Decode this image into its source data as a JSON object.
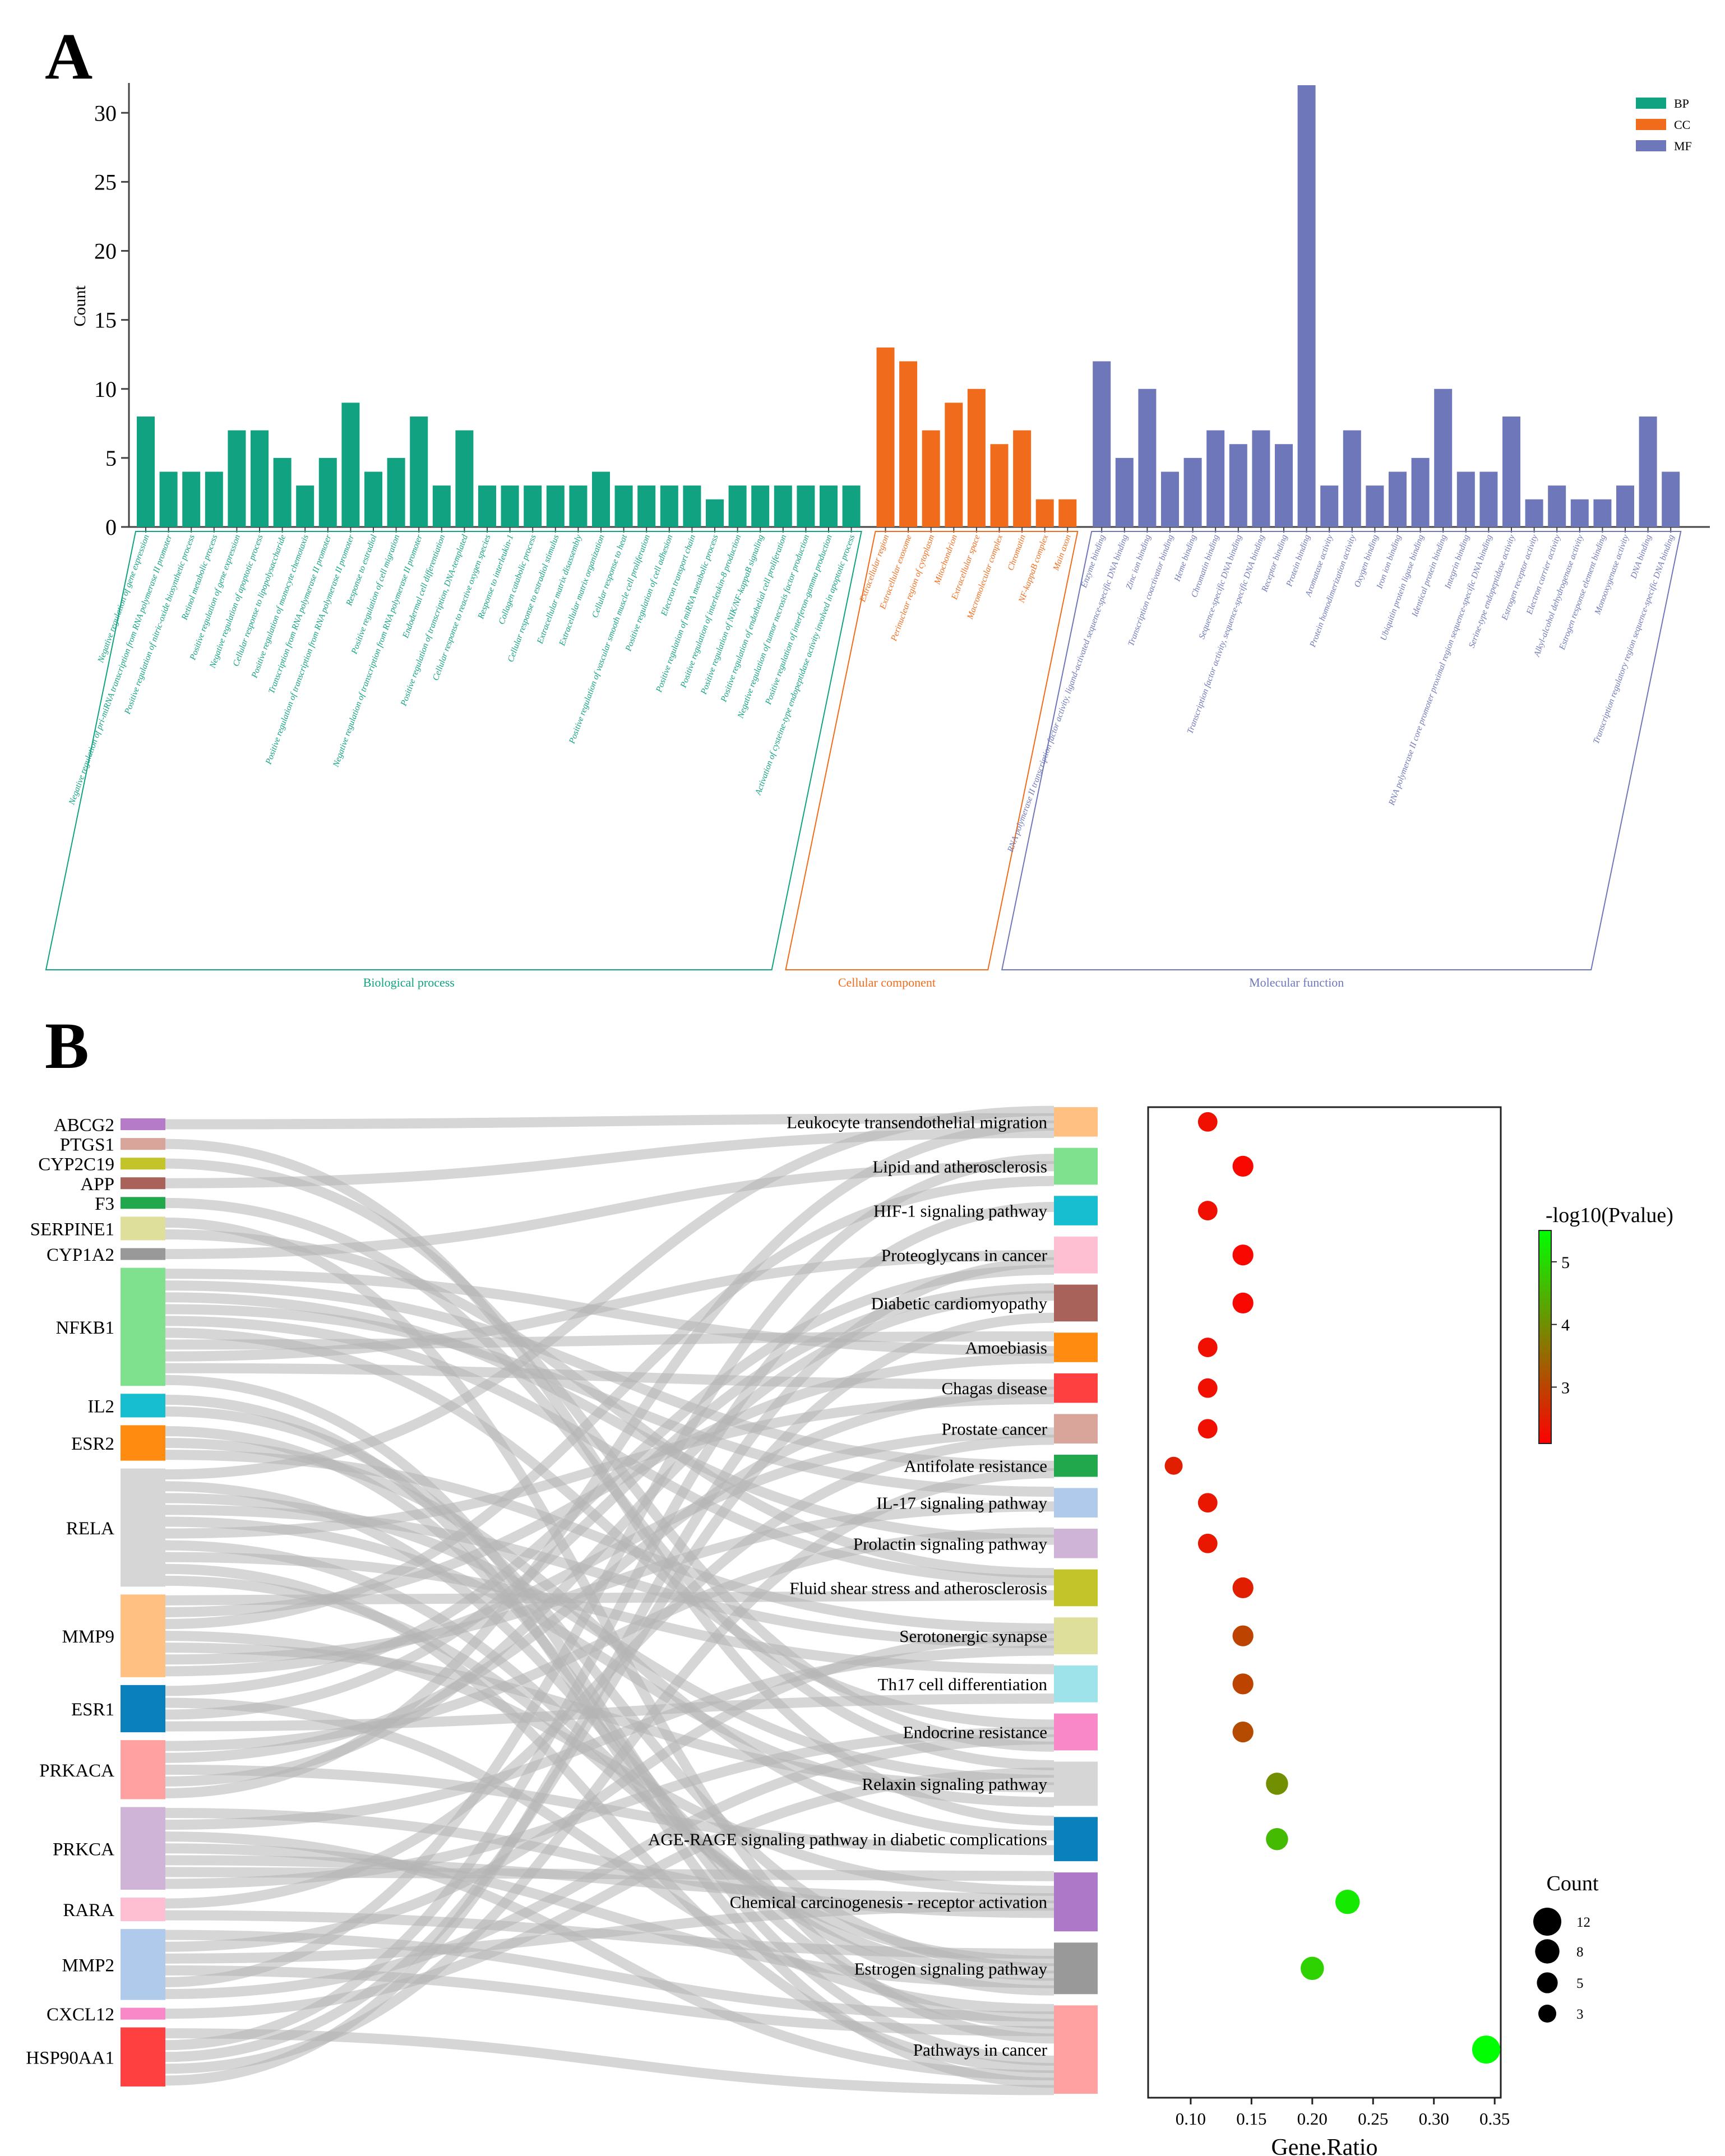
{
  "panels": {
    "a": "A",
    "b": "B"
  },
  "chart_data": [
    {
      "type": "bar",
      "ylabel": "Count",
      "ylim": [
        0,
        32
      ],
      "yticks": [
        0,
        5,
        10,
        15,
        20,
        25,
        30
      ],
      "legend": {
        "placement": "top-right",
        "items": [
          {
            "key": "BP",
            "label": "BP",
            "color": "#10a281"
          },
          {
            "key": "CC",
            "label": "CC",
            "color": "#f06c1c"
          },
          {
            "key": "MF",
            "label": "MF",
            "color": "#6e77b9"
          }
        ]
      },
      "groups": [
        {
          "key": "BP",
          "label": "Biological process",
          "color": "#10a281",
          "categories": [
            "Negative regulation of gene expression",
            "Negative regulation of pri-miRNA transcription from RNA polymerase II promoter",
            "Positive regulation of nitric-oxide biosynthetic process",
            "Retinol metabolic process",
            "Positive regulation of gene expression",
            "Negative regulation of apoptotic process",
            "Cellular response to lipopolysaccharide",
            "Positive regulation of monocyte chemotaxis",
            "Transcription from RNA polymerase II promoter",
            "Positive regulation of transcription from RNA polymerase II promoter",
            "Response to estradiol",
            "Positive regulation of cell migration",
            "Negative regulation of transcription from RNA polymerase II promoter",
            "Endodermal cell differentiation",
            "Positive regulation of transcription, DNA-templated",
            "Cellular response to reactive oxygen species",
            "Response to interleukin-1",
            "Collagen catabolic process",
            "Cellular response to estradiol stimulus",
            "Extracellular matrix disassembly",
            "Extracellular matrix organization",
            "Cellular response to heat",
            "Positive regulation of vascular smooth muscle cell proliferation",
            "Positive regulation of cell adhesion",
            "Electron transport chain",
            "Positive regulation of miRNA metabolic process",
            "Positive regulation of interleukin-8 production",
            "Positive regulation of NIK/NF-kappaB signaling",
            "Positive regulation of endothelial cell proliferation",
            "Negative regulation of tumor necrosis factor production",
            "Positive regulation of interferon-gamma production",
            "Activation of cysteine-type endopeptidase activity involved in apoptotic process"
          ],
          "values": [
            8,
            4,
            4,
            4,
            7,
            7,
            5,
            3,
            5,
            9,
            4,
            5,
            8,
            3,
            7,
            3,
            3,
            3,
            3,
            3,
            4,
            3,
            3,
            3,
            3,
            2,
            3,
            3,
            3,
            3,
            3,
            3
          ]
        },
        {
          "key": "CC",
          "label": "Cellular component",
          "color": "#f06c1c",
          "categories": [
            "Extracellular region",
            "Extracellular exosome",
            "Perinuclear region of cytoplasm",
            "Mitochondrion",
            "Extracellular space",
            "Macromolecular complex",
            "Chromatin",
            "NF-kappaB complex",
            "Main axon"
          ],
          "values": [
            13,
            12,
            7,
            9,
            10,
            6,
            7,
            2,
            2
          ]
        },
        {
          "key": "MF",
          "label": "Molecular function",
          "color": "#6e77b9",
          "categories": [
            "Enzyme binding",
            "RNA polymerase II transcription factor activity, ligand-activated sequence-specific DNA binding",
            "Zinc ion binding",
            "Transcription coactivator binding",
            "Heme binding",
            "Chromatin binding",
            "Sequence-specific DNA binding",
            "Transcription factor activity, sequence-specific DNA binding",
            "Receptor binding",
            "Protein binding",
            "Aromatase activity",
            "Protein homodimerization activity",
            "Oxygen binding",
            "Iron ion binding",
            "Ubiquitin protein ligase binding",
            "Identical protein binding",
            "Integrin binding",
            "RNA polymerase II core promoter proximal region sequence-specific DNA binding",
            "Serine-type endopeptidase activity",
            "Estrogen receptor activity",
            "Electron carrier activity",
            "Alkyl-alcohol dehydrogenase activity",
            "Estrogen response element binding",
            "Monooxygenase activity",
            "DNA binding",
            "Transcription regulatory region sequence-specific DNA binding"
          ],
          "values": [
            12,
            5,
            10,
            4,
            5,
            7,
            6,
            7,
            6,
            32,
            3,
            7,
            3,
            4,
            5,
            10,
            4,
            4,
            8,
            2,
            3,
            2,
            2,
            3,
            8,
            4
          ]
        }
      ]
    },
    {
      "type": "sankey",
      "genes": [
        {
          "name": "ABCG2",
          "color": "#b57ac8",
          "count": 1
        },
        {
          "name": "PTGS1",
          "color": "#d9a49a",
          "count": 1
        },
        {
          "name": "CYP2C19",
          "color": "#c2c42a",
          "count": 1
        },
        {
          "name": "APP",
          "color": "#a8625a",
          "count": 1
        },
        {
          "name": "F3",
          "color": "#21a84d",
          "count": 1
        },
        {
          "name": "SERPINE1",
          "color": "#dedf9a",
          "count": 2
        },
        {
          "name": "CYP1A2",
          "color": "#999999",
          "count": 1
        },
        {
          "name": "NFKB1",
          "color": "#7fe08d",
          "count": 10
        },
        {
          "name": "IL2",
          "color": "#17becf",
          "count": 2
        },
        {
          "name": "ESR2",
          "color": "#ff8c10",
          "count": 3
        },
        {
          "name": "RELA",
          "color": "#d6d6d6",
          "count": 10
        },
        {
          "name": "MMP9",
          "color": "#ffc081",
          "count": 7
        },
        {
          "name": "ESR1",
          "color": "#0a80bd",
          "count": 4
        },
        {
          "name": "PRKACA",
          "color": "#ffa1a0",
          "count": 5
        },
        {
          "name": "PRKCA",
          "color": "#cfb4d8",
          "count": 7
        },
        {
          "name": "RARA",
          "color": "#ffbfd3",
          "count": 2
        },
        {
          "name": "MMP2",
          "color": "#afcaea",
          "count": 6
        },
        {
          "name": "CXCL12",
          "color": "#f988c8",
          "count": 1
        },
        {
          "name": "HSP90AA1",
          "color": "#ff4040",
          "count": 5
        }
      ],
      "pathways": [
        {
          "name": "Leukocyte transendothelial migration",
          "color": "#ffc081"
        },
        {
          "name": "Lipid and atherosclerosis",
          "color": "#7fe08d"
        },
        {
          "name": "HIF-1 signaling pathway",
          "color": "#17becf"
        },
        {
          "name": "Proteoglycans in cancer",
          "color": "#ffbfd3"
        },
        {
          "name": "Diabetic cardiomyopathy",
          "color": "#a8625a"
        },
        {
          "name": "Amoebiasis",
          "color": "#ff8c10"
        },
        {
          "name": "Chagas disease",
          "color": "#ff4040"
        },
        {
          "name": "Prostate cancer",
          "color": "#d9a49a"
        },
        {
          "name": "Antifolate resistance",
          "color": "#21a84d"
        },
        {
          "name": "IL-17 signaling pathway",
          "color": "#afcaea"
        },
        {
          "name": "Prolactin signaling pathway",
          "color": "#cfb4d8"
        },
        {
          "name": "Fluid shear stress and atherosclerosis",
          "color": "#c2c42a"
        },
        {
          "name": "Serotonergic synapse",
          "color": "#dedf9a"
        },
        {
          "name": "Th17 cell differentiation",
          "color": "#9fe3ea"
        },
        {
          "name": "Endocrine resistance",
          "color": "#f988c8"
        },
        {
          "name": "Relaxin signaling pathway",
          "color": "#d6d6d6"
        },
        {
          "name": "AGE-RAGE signaling pathway in diabetic complications",
          "color": "#0a80bd"
        },
        {
          "name": "Chemical carcinogenesis - receptor activation",
          "color": "#ae78c8"
        },
        {
          "name": "Estrogen signaling pathway",
          "color": "#999999"
        },
        {
          "name": "Pathways in cancer",
          "color": "#ffa1a0"
        }
      ]
    },
    {
      "type": "scatter",
      "xlabel": "Gene.Ratio",
      "xlim": [
        0.065,
        0.355
      ],
      "xticks": [
        "0.10",
        "0.15",
        "0.20",
        "0.25",
        "0.30",
        "0.35"
      ],
      "colorbar": {
        "title": "-log10(Pvalue)",
        "ticks": [
          3,
          4,
          5
        ],
        "range": [
          2.1,
          5.5
        ],
        "colors": [
          "#ff0000",
          "#00ff00"
        ]
      },
      "size_legend": {
        "title": "Count",
        "values": [
          "12",
          "8",
          "5",
          "3"
        ]
      },
      "points": [
        {
          "pathway": "Leukocyte transendothelial migration",
          "x": 0.114,
          "count": 4,
          "neglog10p": 2.3
        },
        {
          "pathway": "Lipid and atherosclerosis",
          "x": 0.143,
          "count": 5,
          "neglog10p": 2.2
        },
        {
          "pathway": "HIF-1 signaling pathway",
          "x": 0.114,
          "count": 4,
          "neglog10p": 2.3
        },
        {
          "pathway": "Proteoglycans in cancer",
          "x": 0.143,
          "count": 5,
          "neglog10p": 2.2
        },
        {
          "pathway": "Diabetic cardiomyopathy",
          "x": 0.143,
          "count": 5,
          "neglog10p": 2.2
        },
        {
          "pathway": "Amoebiasis",
          "x": 0.114,
          "count": 4,
          "neglog10p": 2.3
        },
        {
          "pathway": "Chagas disease",
          "x": 0.114,
          "count": 4,
          "neglog10p": 2.3
        },
        {
          "pathway": "Prostate cancer",
          "x": 0.114,
          "count": 4,
          "neglog10p": 2.3
        },
        {
          "pathway": "Antifolate resistance",
          "x": 0.086,
          "count": 3,
          "neglog10p": 2.5
        },
        {
          "pathway": "IL-17 signaling pathway",
          "x": 0.114,
          "count": 4,
          "neglog10p": 2.4
        },
        {
          "pathway": "Prolactin signaling pathway",
          "x": 0.114,
          "count": 4,
          "neglog10p": 2.4
        },
        {
          "pathway": "Fluid shear stress and atherosclerosis",
          "x": 0.143,
          "count": 5,
          "neglog10p": 2.5
        },
        {
          "pathway": "Serotonergic synapse",
          "x": 0.143,
          "count": 5,
          "neglog10p": 3.0
        },
        {
          "pathway": "Th17 cell differentiation",
          "x": 0.143,
          "count": 5,
          "neglog10p": 3.0
        },
        {
          "pathway": "Endocrine resistance",
          "x": 0.143,
          "count": 5,
          "neglog10p": 3.1
        },
        {
          "pathway": "Relaxin signaling pathway",
          "x": 0.171,
          "count": 6,
          "neglog10p": 4.0
        },
        {
          "pathway": "AGE-RAGE signaling pathway in diabetic complications",
          "x": 0.171,
          "count": 6,
          "neglog10p": 4.6
        },
        {
          "pathway": "Chemical carcinogenesis - receptor activation",
          "x": 0.229,
          "count": 8,
          "neglog10p": 5.2
        },
        {
          "pathway": "Estrogen signaling pathway",
          "x": 0.2,
          "count": 7,
          "neglog10p": 4.9
        },
        {
          "pathway": "Pathways in cancer",
          "x": 0.343,
          "count": 12,
          "neglog10p": 5.5
        }
      ]
    }
  ]
}
